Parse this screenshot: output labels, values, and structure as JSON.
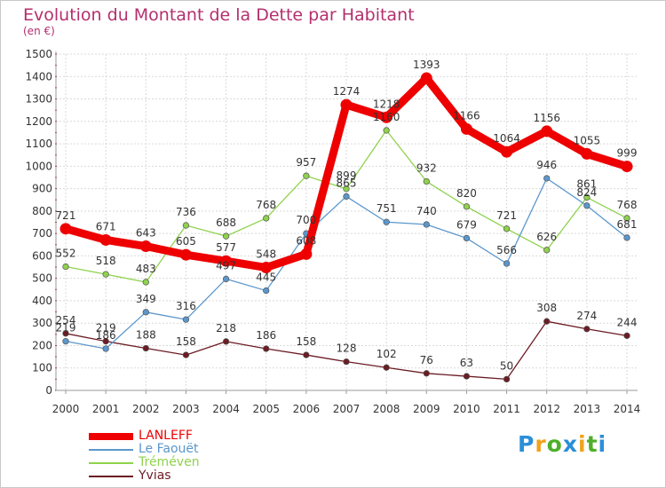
{
  "title": "Evolution du Montant de la Dette par Habitant",
  "subtitle": "(en €)",
  "logo": {
    "text": "Proxiti",
    "colors": [
      "#2a8fd8",
      "#f0a21c",
      "#4daf2a",
      "#2a8fd8",
      "#f0a21c",
      "#4daf2a",
      "#2a8fd8"
    ]
  },
  "chart_data": {
    "type": "line",
    "x": [
      "2000",
      "2001",
      "2002",
      "2003",
      "2004",
      "2005",
      "2006",
      "2007",
      "2008",
      "2009",
      "2010",
      "2011",
      "2012",
      "2013",
      "2014"
    ],
    "ylim": [
      0,
      1500
    ],
    "yticks": [
      0,
      100,
      200,
      300,
      400,
      500,
      600,
      700,
      800,
      900,
      1000,
      1100,
      1200,
      1300,
      1400,
      1500
    ],
    "grid": true,
    "legend": "bottom-left",
    "series": [
      {
        "name": "Yvias",
        "color": "#6b1c24",
        "values": [
          254,
          219,
          188,
          158,
          218,
          186,
          158,
          128,
          102,
          76,
          63,
          50,
          308,
          274,
          244
        ]
      },
      {
        "name": "Tréméven",
        "color": "#8fd24c",
        "values": [
          552,
          518,
          483,
          736,
          688,
          768,
          957,
          899,
          1160,
          932,
          820,
          721,
          626,
          861,
          768
        ]
      },
      {
        "name": "Le Faouët",
        "color": "#5b97cc",
        "values": [
          219,
          186,
          349,
          316,
          497,
          445,
          700,
          865,
          751,
          740,
          679,
          566,
          946,
          824,
          681
        ]
      },
      {
        "name": "LANLEFF",
        "color": "#ee0000",
        "values": [
          721,
          671,
          643,
          605,
          577,
          548,
          608,
          1274,
          1218,
          1393,
          1166,
          1064,
          1156,
          1055,
          999
        ]
      }
    ]
  }
}
